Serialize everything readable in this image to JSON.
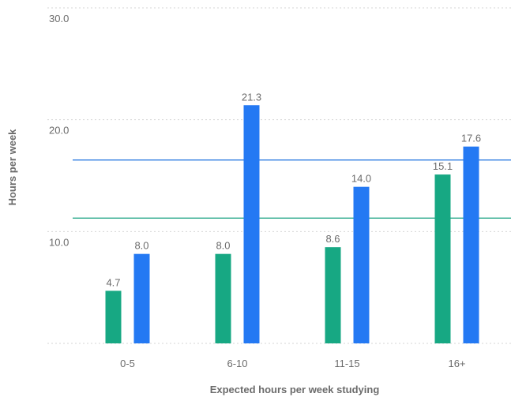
{
  "chart_data": {
    "type": "bar",
    "xlabel": "Expected hours per week studying",
    "ylabel": "Hours per week",
    "ylim": [
      0,
      30
    ],
    "y_ticks": [
      "10.0",
      "20.0",
      "30.0"
    ],
    "grid": true,
    "categories": [
      "0-5",
      "6-10",
      "11-15",
      "16+"
    ],
    "series": [
      {
        "color": "#17a883",
        "values": [
          4.7,
          8.0,
          8.6,
          15.1
        ],
        "labels": [
          "4.7",
          "8.0",
          "8.6",
          "15.1"
        ]
      },
      {
        "color": "#2479f3",
        "values": [
          8.0,
          21.3,
          14.0,
          17.6
        ],
        "labels": [
          "8.0",
          "21.3",
          "14.0",
          "17.6"
        ]
      }
    ],
    "reference_lines": [
      {
        "value": 16.4,
        "color": "#2f7de1"
      },
      {
        "value": 11.2,
        "color": "#26a88a"
      }
    ]
  }
}
